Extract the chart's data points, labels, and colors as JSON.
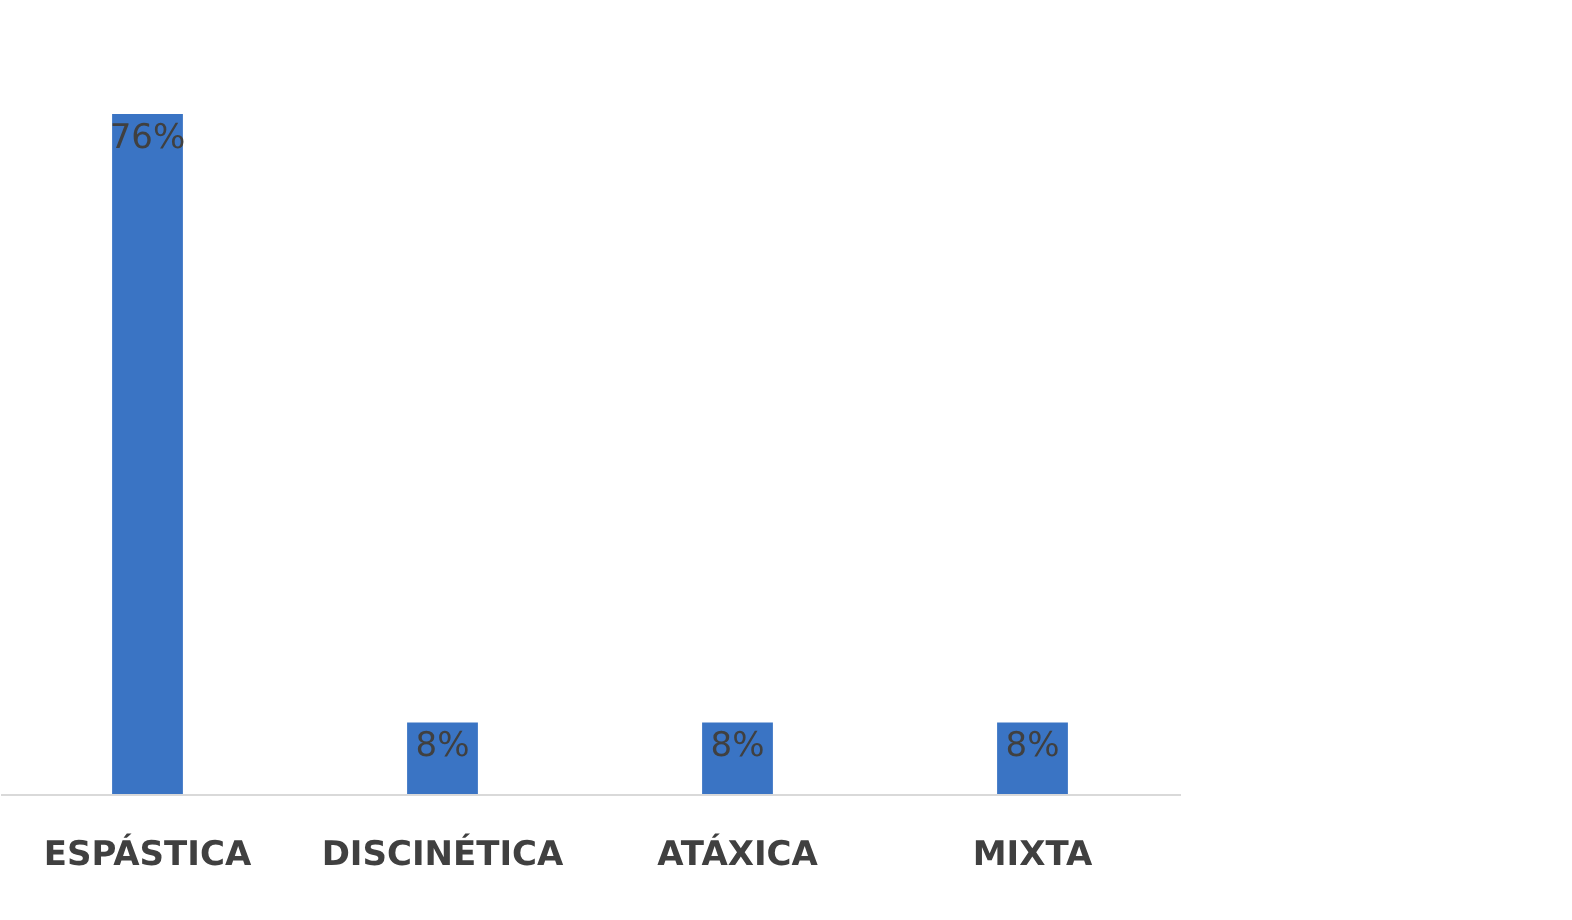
{
  "chart_data": {
    "type": "bar",
    "categories": [
      "ESPÁSTICA",
      "DISCINÉTICA",
      "ATÁXICA",
      "MIXTA"
    ],
    "values": [
      76,
      8,
      8,
      8
    ],
    "value_labels": [
      "76%",
      "8%",
      "8%",
      "8%"
    ],
    "color": "#3a74c4"
  }
}
